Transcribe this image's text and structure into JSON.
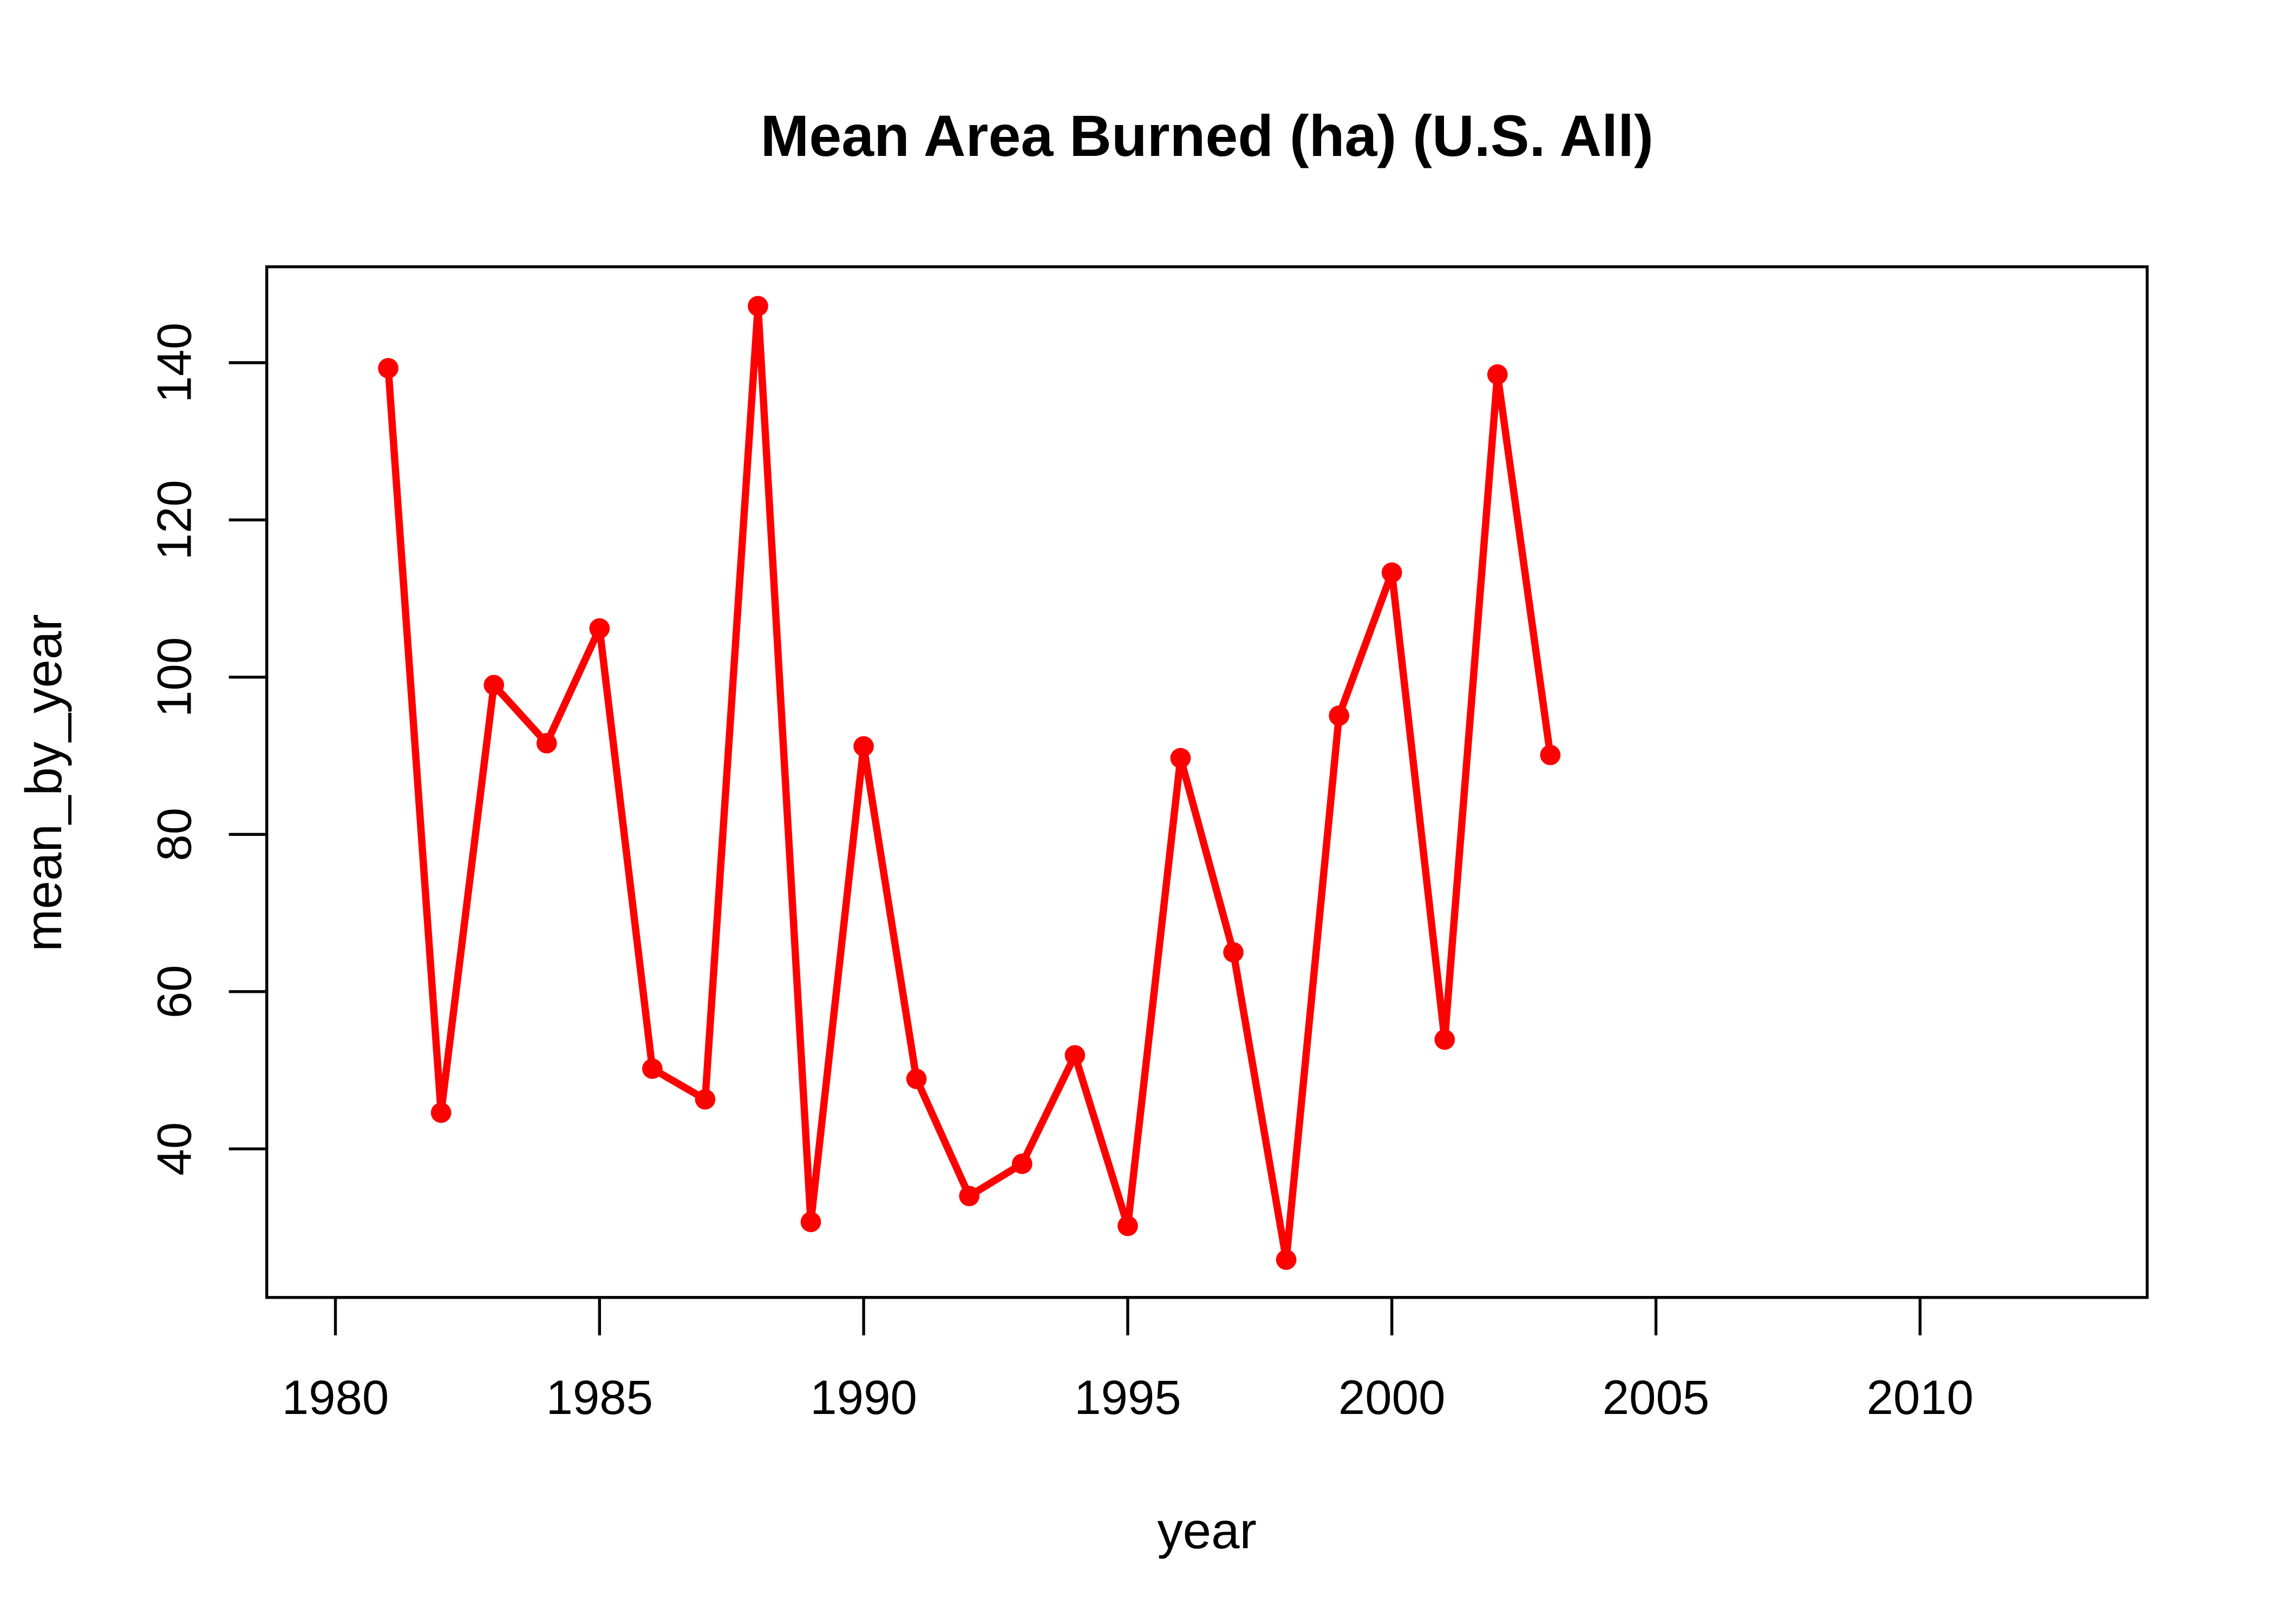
{
  "chart_data": {
    "type": "line",
    "title": "Mean Area Burned (ha) (U.S. All)",
    "xlabel": "year",
    "ylabel": "mean_by_year",
    "xlim": [
      1978.7,
      2014.3
    ],
    "ylim": [
      21.1,
      152.2
    ],
    "x_ticks": [
      1980,
      1985,
      1990,
      1995,
      2000,
      2005,
      2010
    ],
    "y_ticks": [
      40,
      60,
      80,
      100,
      120,
      140
    ],
    "grid": false,
    "color": "#ff0000",
    "series": [
      {
        "name": "mean_by_year",
        "x": [
          1981,
          1982,
          1983,
          1984,
          1985,
          1986,
          1987,
          1988,
          1989,
          1990,
          1991,
          1992,
          1993,
          1994,
          1995,
          1996,
          1997,
          1998,
          1999,
          2000,
          2001,
          2002,
          2003
        ],
        "values": [
          139.3,
          44.6,
          99.0,
          91.6,
          106.2,
          50.2,
          46.3,
          147.2,
          30.7,
          91.2,
          48.9,
          34.0,
          38.1,
          51.9,
          30.2,
          89.7,
          65.0,
          25.9,
          95.1,
          113.3,
          53.9,
          138.5,
          90.1
        ]
      }
    ]
  }
}
